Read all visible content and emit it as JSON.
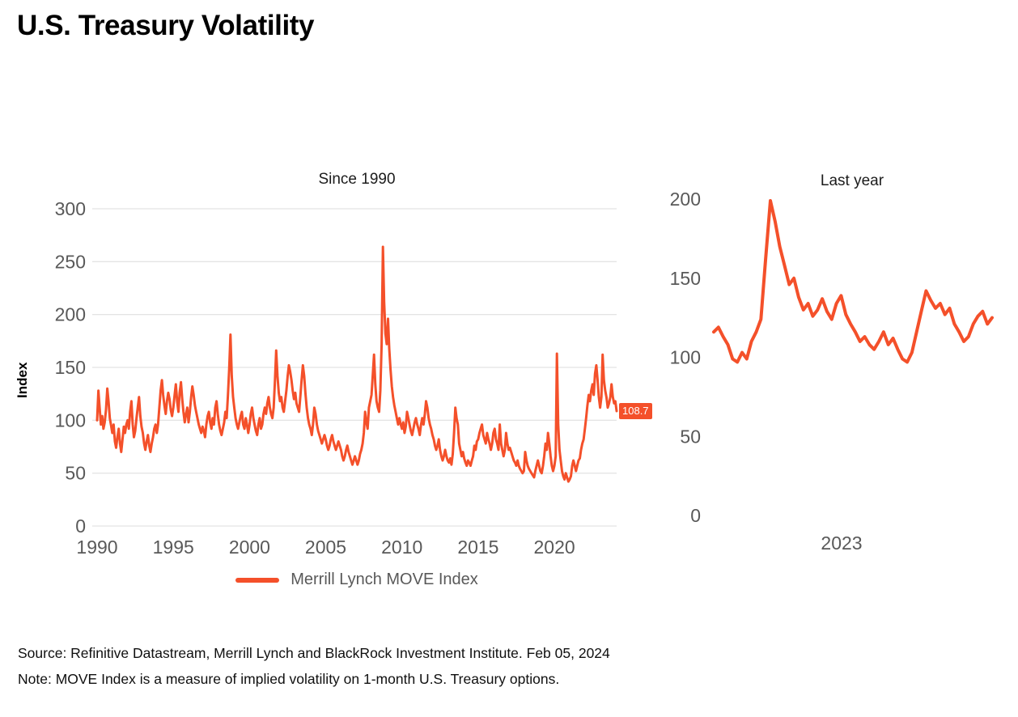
{
  "page": {
    "title": "U.S. Treasury Volatility"
  },
  "legend": {
    "label": "Merrill Lynch MOVE Index"
  },
  "footer": {
    "source": "Source: Refinitive Datastream, Merrill Lynch and BlackRock Investment Institute. Feb 05, 2024",
    "note": "Note: MOVE Index is a measure of implied volatility on 1-month U.S. Treasury options."
  },
  "colors": {
    "line": "#F4502A",
    "grid": "#DCDCDC",
    "tick_text": "#595959"
  },
  "chart_data": [
    {
      "type": "line",
      "name": "since-1990",
      "title": "Since 1990",
      "ylabel": "Index",
      "legend": "Merrill Lynch MOVE Index",
      "ylim": [
        0,
        300
      ],
      "yticks": [
        300,
        250,
        200,
        150,
        100,
        50,
        0
      ],
      "xticks": [
        1990,
        1995,
        2000,
        2005,
        2010,
        2015,
        2020
      ],
      "x_start_year": 1990,
      "points_per_year": 12,
      "grid": true,
      "end_label": "108.7",
      "values": [
        100,
        128,
        112,
        96,
        104,
        92,
        98,
        110,
        130,
        118,
        102,
        95,
        88,
        96,
        80,
        74,
        84,
        92,
        78,
        70,
        82,
        94,
        88,
        96,
        100,
        92,
        108,
        118,
        96,
        84,
        90,
        102,
        112,
        122,
        104,
        94,
        88,
        78,
        72,
        80,
        86,
        76,
        70,
        78,
        84,
        92,
        96,
        88,
        96,
        112,
        128,
        138,
        124,
        114,
        106,
        118,
        126,
        120,
        110,
        104,
        112,
        124,
        134,
        118,
        108,
        126,
        136,
        120,
        108,
        98,
        106,
        112,
        98,
        108,
        122,
        132,
        124,
        114,
        108,
        102,
        96,
        92,
        88,
        94,
        90,
        84,
        96,
        104,
        108,
        98,
        92,
        102,
        96,
        112,
        118,
        106,
        96,
        90,
        86,
        92,
        98,
        108,
        102,
        124,
        148,
        181,
        142,
        122,
        112,
        102,
        96,
        92,
        98,
        104,
        108,
        96,
        92,
        102,
        96,
        88,
        96,
        106,
        112,
        102,
        96,
        90,
        86,
        96,
        102,
        92,
        96,
        106,
        112,
        106,
        116,
        122,
        112,
        106,
        102,
        112,
        138,
        166,
        142,
        126,
        118,
        122,
        112,
        108,
        118,
        128,
        142,
        152,
        146,
        138,
        128,
        120,
        126,
        116,
        112,
        108,
        122,
        138,
        152,
        142,
        126,
        112,
        102,
        96,
        92,
        86,
        96,
        112,
        106,
        96,
        90,
        86,
        82,
        78,
        82,
        86,
        82,
        76,
        72,
        76,
        82,
        86,
        80,
        76,
        72,
        76,
        80,
        76,
        72,
        66,
        62,
        66,
        72,
        76,
        70,
        66,
        62,
        58,
        62,
        66,
        62,
        58,
        62,
        68,
        72,
        78,
        88,
        108,
        98,
        92,
        112,
        118,
        124,
        142,
        162,
        134,
        118,
        112,
        108,
        128,
        172,
        264,
        212,
        182,
        172,
        196,
        168,
        148,
        132,
        122,
        114,
        108,
        102,
        96,
        102,
        96,
        92,
        98,
        88,
        94,
        108,
        102,
        96,
        90,
        86,
        92,
        98,
        102,
        96,
        92,
        86,
        96,
        102,
        96,
        106,
        118,
        112,
        102,
        96,
        92,
        86,
        82,
        76,
        72,
        76,
        82,
        72,
        66,
        62,
        66,
        72,
        66,
        62,
        60,
        64,
        58,
        68,
        88,
        112,
        102,
        96,
        78,
        72,
        66,
        70,
        64,
        60,
        57,
        62,
        60,
        57,
        62,
        66,
        76,
        72,
        80,
        82,
        88,
        92,
        96,
        86,
        82,
        78,
        88,
        82,
        78,
        72,
        78,
        88,
        92,
        82,
        78,
        72,
        96,
        78,
        72,
        66,
        72,
        88,
        78,
        72,
        74,
        70,
        66,
        62,
        60,
        57,
        62,
        57,
        54,
        52,
        50,
        52,
        70,
        62,
        57,
        54,
        52,
        50,
        48,
        46,
        52,
        57,
        62,
        57,
        52,
        50,
        57,
        66,
        78,
        72,
        88,
        78,
        66,
        57,
        52,
        57,
        66,
        163,
        96,
        72,
        62,
        52,
        47,
        44,
        50,
        46,
        42,
        44,
        47,
        57,
        62,
        57,
        52,
        57,
        62,
        64,
        72,
        78,
        82,
        92,
        102,
        114,
        124,
        118,
        128,
        134,
        124,
        144,
        152,
        138,
        122,
        112,
        122,
        162,
        138,
        128,
        122,
        112,
        116,
        122,
        134,
        122,
        116,
        118,
        108.7
      ]
    },
    {
      "type": "line",
      "name": "last-year",
      "title": "Last year",
      "ylim": [
        0,
        200
      ],
      "yticks": [
        200,
        150,
        100,
        50,
        0
      ],
      "xticks": [
        "2023"
      ],
      "grid": false,
      "values": [
        116,
        119,
        113,
        108,
        99,
        97,
        103,
        99,
        110,
        116,
        124,
        162,
        199,
        186,
        170,
        158,
        146,
        150,
        138,
        130,
        134,
        126,
        130,
        137,
        129,
        124,
        134,
        139,
        127,
        121,
        116,
        110,
        113,
        108,
        105,
        110,
        116,
        108,
        112,
        105,
        99,
        97,
        103,
        116,
        129,
        142,
        136,
        131,
        134,
        127,
        131,
        121,
        116,
        110,
        113,
        121,
        126,
        129,
        121,
        125
      ]
    }
  ]
}
